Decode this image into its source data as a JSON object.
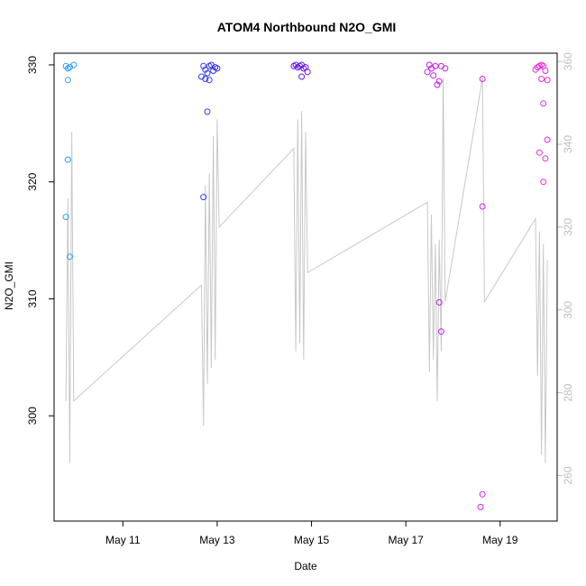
{
  "chart_data": {
    "type": "scatter",
    "title": "ATOM4 Northbound N2O_GMI",
    "xlabel": "Date",
    "ylabel": "N2O_GMI",
    "xlim": [
      "2018-05-09T13:00",
      "2018-05-20T05:00"
    ],
    "ylim": [
      291,
      331
    ],
    "x_ticks": [
      {
        "label": "May 11",
        "date": "2018-05-11T00:00"
      },
      {
        "label": "May 13",
        "date": "2018-05-13T00:00"
      },
      {
        "label": "May 15",
        "date": "2018-05-15T00:00"
      },
      {
        "label": "May 17",
        "date": "2018-05-17T00:00"
      },
      {
        "label": "May 19",
        "date": "2018-05-19T00:00"
      }
    ],
    "y_ticks": [
      300,
      310,
      320,
      330
    ],
    "y2_ticks": [
      260,
      280,
      300,
      320,
      340,
      360
    ],
    "y2lim": [
      249,
      362
    ],
    "secondary_series": {
      "name": "",
      "color": "#c8c8c8",
      "points": [
        [
          "2018-05-09T19:00",
          278
        ],
        [
          "2018-05-09T20:00",
          327
        ],
        [
          "2018-05-09T21:00",
          263
        ],
        [
          "2018-05-09T22:00",
          343
        ],
        [
          "2018-05-09T23:00",
          278
        ],
        [
          "2018-05-12T16:00",
          306
        ],
        [
          "2018-05-12T17:00",
          272
        ],
        [
          "2018-05-12T18:00",
          330
        ],
        [
          "2018-05-12T19:00",
          282
        ],
        [
          "2018-05-12T20:00",
          333
        ],
        [
          "2018-05-12T21:00",
          286
        ],
        [
          "2018-05-12T22:00",
          342
        ],
        [
          "2018-05-12T23:00",
          288
        ],
        [
          "2018-05-13T00:00",
          346
        ],
        [
          "2018-05-13T01:00",
          320
        ],
        [
          "2018-05-14T15:00",
          339
        ],
        [
          "2018-05-14T16:00",
          290
        ],
        [
          "2018-05-14T17:00",
          346
        ],
        [
          "2018-05-14T18:00",
          292
        ],
        [
          "2018-05-14T19:00",
          348
        ],
        [
          "2018-05-14T20:00",
          288
        ],
        [
          "2018-05-14T21:00",
          343
        ],
        [
          "2018-05-14T22:00",
          309
        ],
        [
          "2018-05-17T11:00",
          326
        ],
        [
          "2018-05-17T12:00",
          285
        ],
        [
          "2018-05-17T13:00",
          323
        ],
        [
          "2018-05-17T14:00",
          288
        ],
        [
          "2018-05-17T15:00",
          316
        ],
        [
          "2018-05-17T16:00",
          278
        ],
        [
          "2018-05-17T17:00",
          317
        ],
        [
          "2018-05-17T18:00",
          290
        ],
        [
          "2018-05-17T19:00",
          356
        ],
        [
          "2018-05-17T20:00",
          302
        ],
        [
          "2018-05-18T15:00",
          356
        ],
        [
          "2018-05-18T16:00",
          302
        ],
        [
          "2018-05-19T18:00",
          322
        ],
        [
          "2018-05-19T19:00",
          284
        ],
        [
          "2018-05-19T20:00",
          319
        ],
        [
          "2018-05-19T21:00",
          265
        ],
        [
          "2018-05-19T22:00",
          316
        ],
        [
          "2018-05-19T23:00",
          263
        ],
        [
          "2018-05-20T00:00",
          312
        ]
      ]
    },
    "series": [
      {
        "name": "",
        "points": [
          [
            "2018-05-09T19:00",
            329.9
          ],
          [
            "2018-05-09T20:00",
            329.7
          ],
          [
            "2018-05-09T21:00",
            329.8
          ],
          [
            "2018-05-09T23:00",
            330.0
          ],
          [
            "2018-05-09T20:00",
            328.7
          ],
          [
            "2018-05-09T20:00",
            321.9
          ],
          [
            "2018-05-09T19:00",
            317.0
          ],
          [
            "2018-05-09T21:00",
            313.6
          ],
          [
            "2018-05-12T16:00",
            329.0
          ],
          [
            "2018-05-12T17:00",
            329.9
          ],
          [
            "2018-05-12T18:00",
            329.6
          ],
          [
            "2018-05-12T19:00",
            329.3
          ],
          [
            "2018-05-12T20:00",
            329.9
          ],
          [
            "2018-05-12T21:00",
            330.0
          ],
          [
            "2018-05-12T22:00",
            329.5
          ],
          [
            "2018-05-12T23:00",
            329.8
          ],
          [
            "2018-05-13T00:00",
            329.7
          ],
          [
            "2018-05-12T20:00",
            328.7
          ],
          [
            "2018-05-12T18:00",
            328.8
          ],
          [
            "2018-05-12T19:00",
            326.0
          ],
          [
            "2018-05-12T17:00",
            318.7
          ],
          [
            "2018-05-14T15:00",
            329.9
          ],
          [
            "2018-05-14T16:00",
            330.0
          ],
          [
            "2018-05-14T17:00",
            329.8
          ],
          [
            "2018-05-14T18:00",
            329.9
          ],
          [
            "2018-05-14T19:00",
            330.0
          ],
          [
            "2018-05-14T20:00",
            329.7
          ],
          [
            "2018-05-14T21:00",
            329.8
          ],
          [
            "2018-05-14T22:00",
            329.4
          ],
          [
            "2018-05-14T19:00",
            329.0
          ],
          [
            "2018-05-17T11:00",
            329.4
          ],
          [
            "2018-05-17T12:00",
            330.0
          ],
          [
            "2018-05-17T13:00",
            329.7
          ],
          [
            "2018-05-17T14:00",
            329.1
          ],
          [
            "2018-05-17T15:00",
            329.9
          ],
          [
            "2018-05-17T16:00",
            328.3
          ],
          [
            "2018-05-17T17:00",
            328.6
          ],
          [
            "2018-05-17T18:00",
            329.9
          ],
          [
            "2018-05-17T20:00",
            329.7
          ],
          [
            "2018-05-17T17:00",
            309.7
          ],
          [
            "2018-05-17T18:00",
            307.2
          ],
          [
            "2018-05-18T14:00",
            292.2
          ],
          [
            "2018-05-18T15:00",
            293.3
          ],
          [
            "2018-05-18T15:00",
            317.9
          ],
          [
            "2018-05-18T15:00",
            328.8
          ],
          [
            "2018-05-19T18:00",
            329.6
          ],
          [
            "2018-05-19T19:00",
            329.8
          ],
          [
            "2018-05-19T20:00",
            329.9
          ],
          [
            "2018-05-19T21:00",
            330.0
          ],
          [
            "2018-05-19T22:00",
            329.9
          ],
          [
            "2018-05-19T23:00",
            329.5
          ],
          [
            "2018-05-19T21:00",
            328.8
          ],
          [
            "2018-05-20T00:00",
            328.7
          ],
          [
            "2018-05-19T22:00",
            326.7
          ],
          [
            "2018-05-20T00:00",
            323.6
          ],
          [
            "2018-05-19T20:00",
            322.5
          ],
          [
            "2018-05-19T23:00",
            322.0
          ],
          [
            "2018-05-19T22:00",
            320.0
          ]
        ]
      }
    ],
    "color_scale": [
      "#28a8ff",
      "#2860ff",
      "#4010e8",
      "#9a18f0",
      "#d020e8",
      "#f028d8"
    ],
    "grid": false,
    "legend": "none"
  }
}
